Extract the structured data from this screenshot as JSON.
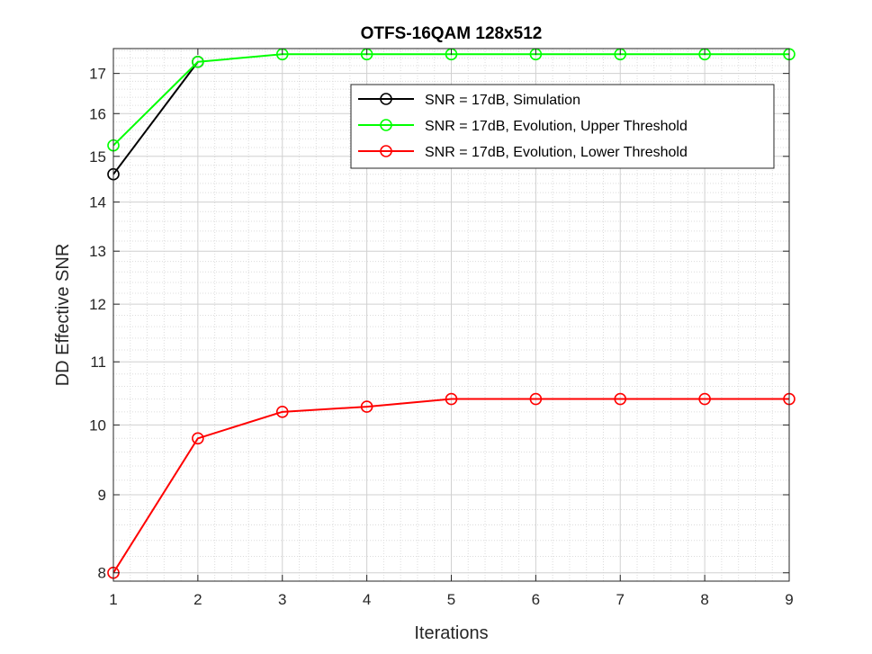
{
  "chart_data": {
    "type": "line",
    "title": "OTFS-16QAM 128x512",
    "xlabel": "Iterations",
    "ylabel": "DD Effective SNR",
    "x": [
      1,
      2,
      3,
      4,
      5,
      6,
      7,
      8,
      9
    ],
    "xlim": [
      1,
      9
    ],
    "xticks": [
      1,
      2,
      3,
      4,
      5,
      6,
      7,
      8,
      9
    ],
    "ylim": [
      7.9,
      17.65
    ],
    "yscale": "log",
    "yticks": [
      8,
      9,
      10,
      11,
      12,
      13,
      14,
      15,
      16,
      17
    ],
    "grid": true,
    "minor_grid": true,
    "legend_position": "top-right",
    "series": [
      {
        "name": "SNR = 17dB, Simulation",
        "color": "#000000",
        "marker": "circle",
        "x": [
          1,
          2
        ],
        "values": [
          14.6,
          17.3
        ]
      },
      {
        "name": "SNR = 17dB, Evolution, Upper Threshold",
        "color": "#00ff00",
        "marker": "circle",
        "x": [
          1,
          2,
          3,
          4,
          5,
          6,
          7,
          8,
          9
        ],
        "values": [
          15.25,
          17.3,
          17.5,
          17.5,
          17.5,
          17.5,
          17.5,
          17.5,
          17.5
        ]
      },
      {
        "name": "SNR = 17dB, Evolution, Lower Threshold",
        "color": "#ff0000",
        "marker": "circle",
        "x": [
          1,
          2,
          3,
          4,
          5,
          6,
          7,
          8,
          9
        ],
        "values": [
          8.0,
          9.8,
          10.2,
          10.28,
          10.4,
          10.4,
          10.4,
          10.4,
          10.4
        ]
      }
    ]
  }
}
